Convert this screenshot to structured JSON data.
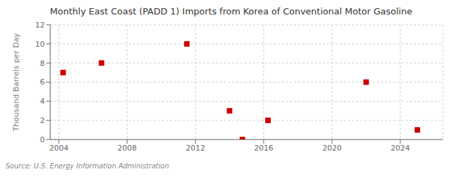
{
  "chart_data": {
    "type": "scatter",
    "title": "Monthly East Coast (PADD 1) Imports from Korea of Conventional Motor Gasoline",
    "ylabel": "Thousand Barrels per Day",
    "annotations": [
      "Source: U.S. Energy Information Administration"
    ],
    "x": [
      2004.25,
      2006.5,
      2011.5,
      2014.0,
      2014.75,
      2016.25,
      2022.0,
      2025.0
    ],
    "values": [
      7,
      8,
      10,
      3,
      0,
      2,
      6,
      1
    ],
    "color": "#cc0000",
    "marker": "square",
    "xlim": [
      2003.5,
      2026.5
    ],
    "ylim": [
      0,
      12
    ],
    "xticks": [
      2004,
      2008,
      2012,
      2016,
      2020,
      2024
    ],
    "yticks": [
      0,
      2,
      4,
      6,
      8,
      10,
      12
    ],
    "grid": true
  }
}
